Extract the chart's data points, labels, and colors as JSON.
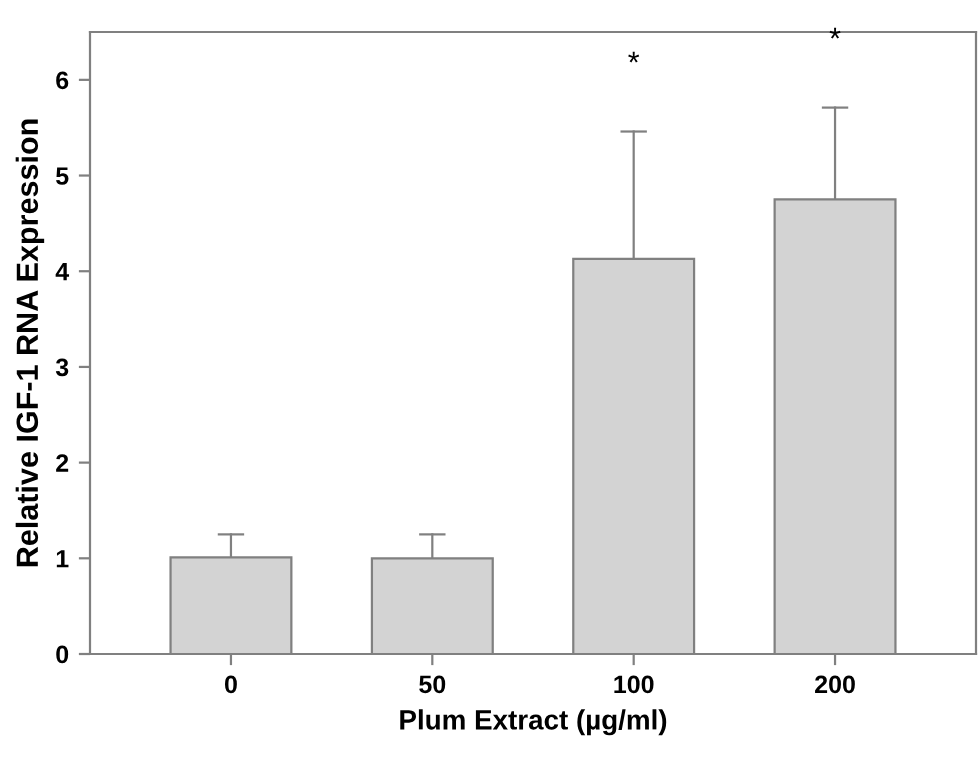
{
  "chart_data": {
    "type": "bar",
    "xlabel": "Plum Extract (µg/ml)",
    "ylabel": "Relative IGF-1 RNA Expression",
    "categories": [
      "0",
      "50",
      "100",
      "200"
    ],
    "values": [
      1.01,
      1.0,
      4.13,
      4.75
    ],
    "errors": [
      [
        1.01,
        1.25
      ],
      [
        1.0,
        1.25
      ],
      [
        4.13,
        5.46
      ],
      [
        4.75,
        5.71
      ]
    ],
    "color": "#d3d3d3",
    "ylim": [
      0,
      6.5
    ],
    "yticks": [
      0,
      1,
      2,
      3,
      4,
      5,
      6
    ],
    "grid": false,
    "annotations": [
      "*",
      "*"
    ]
  }
}
